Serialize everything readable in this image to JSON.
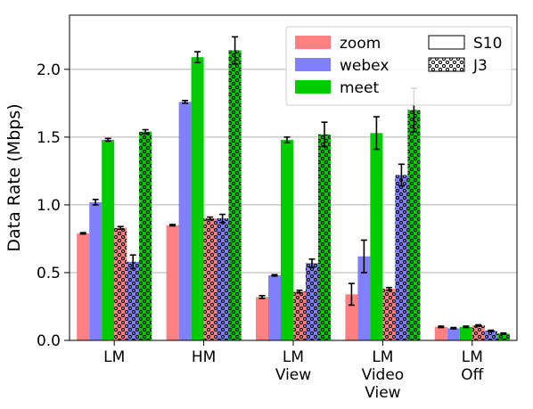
{
  "chart_data": {
    "type": "bar",
    "ylabel": "Data Rate (Mbps)",
    "ylim": [
      0,
      2.4
    ],
    "yticks": [
      "0.0",
      "0.5",
      "1.0",
      "1.5",
      "2.0"
    ],
    "grid": "horizontal",
    "legend_position": "top-right",
    "categories": [
      [
        "LM"
      ],
      [
        "HM"
      ],
      [
        "LM",
        "View"
      ],
      [
        "LM",
        "Video",
        "View"
      ],
      [
        "LM",
        "Off"
      ]
    ],
    "apps": [
      {
        "name": "zoom",
        "color": "#ff8080"
      },
      {
        "name": "webex",
        "color": "#8080ff"
      },
      {
        "name": "meet",
        "color": "#00cc00"
      }
    ],
    "devices": [
      {
        "name": "S10",
        "pattern": "none"
      },
      {
        "name": "J3",
        "pattern": "dots"
      }
    ],
    "series": [
      {
        "app": "zoom",
        "device": "S10",
        "values": [
          0.79,
          0.85,
          0.32,
          0.34,
          0.1
        ],
        "errors": [
          0.005,
          0.005,
          0.01,
          0.08,
          0.005
        ]
      },
      {
        "app": "webex",
        "device": "S10",
        "values": [
          1.02,
          1.76,
          0.48,
          0.62,
          0.09
        ],
        "errors": [
          0.02,
          0.01,
          0.005,
          0.12,
          0.005
        ]
      },
      {
        "app": "meet",
        "device": "S10",
        "values": [
          1.48,
          2.09,
          1.48,
          1.53,
          0.1
        ],
        "errors": [
          0.01,
          0.04,
          0.02,
          0.12,
          0.005
        ]
      },
      {
        "app": "zoom",
        "device": "J3",
        "values": [
          0.83,
          0.9,
          0.36,
          0.38,
          0.11
        ],
        "errors": [
          0.01,
          0.01,
          0.01,
          0.01,
          0.005
        ]
      },
      {
        "app": "webex",
        "device": "J3",
        "values": [
          0.58,
          0.9,
          0.57,
          1.22,
          0.07
        ],
        "errors": [
          0.05,
          0.03,
          0.03,
          0.08,
          0.005
        ]
      },
      {
        "app": "meet",
        "device": "J3",
        "values": [
          1.54,
          2.14,
          1.52,
          1.7,
          0.05
        ],
        "errors": [
          0.015,
          0.1,
          0.09,
          0.16,
          0.005
        ]
      }
    ]
  }
}
